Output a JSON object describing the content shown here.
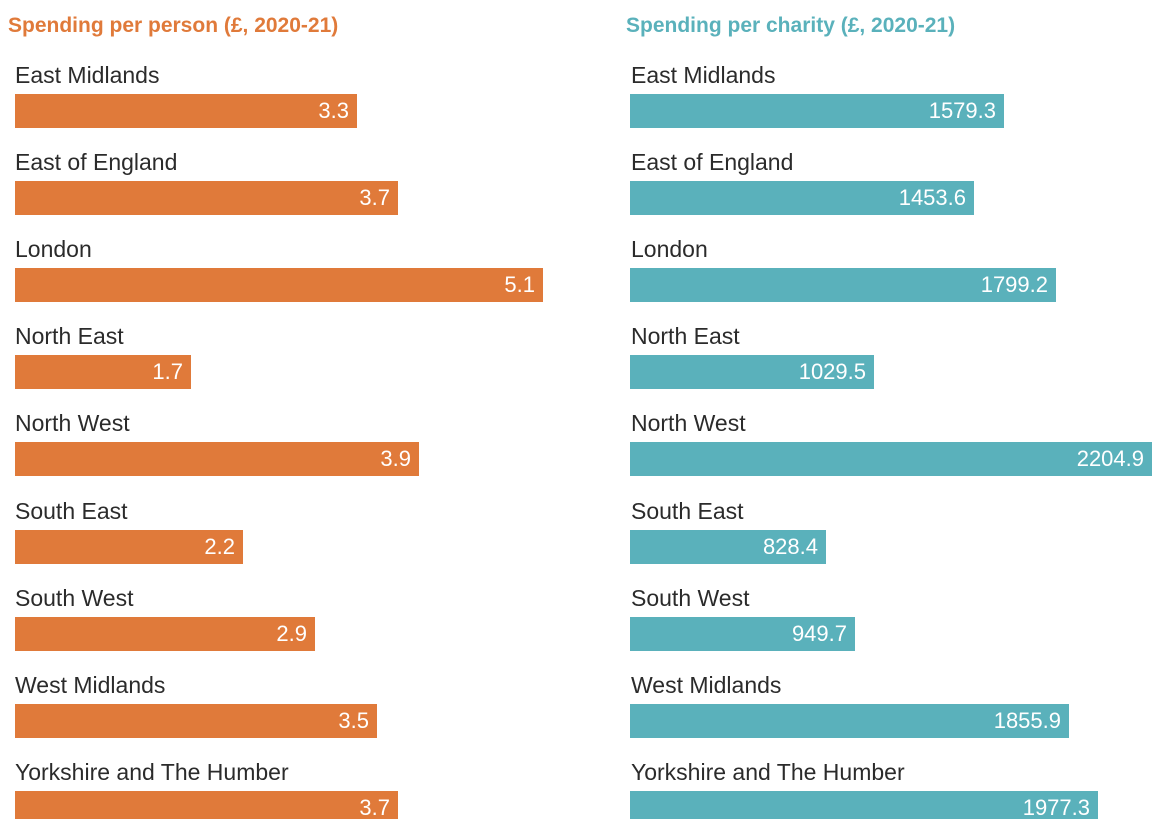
{
  "colors": {
    "left": "#e07a3a",
    "right": "#5ab1bb"
  },
  "chart_data": [
    {
      "type": "bar",
      "orientation": "horizontal",
      "title": "Spending per person (£, 2020-21)",
      "categories": [
        "East Midlands",
        "East of England",
        "London",
        "North East",
        "North West",
        "South East",
        "South West",
        "West Midlands",
        "Yorkshire and The Humber"
      ],
      "values": [
        3.3,
        3.7,
        5.1,
        1.7,
        3.9,
        2.2,
        2.9,
        3.5,
        3.7
      ],
      "value_labels": [
        "3.3",
        "3.7",
        "5.1",
        "1.7",
        "3.9",
        "2.2",
        "2.9",
        "3.5",
        "3.7"
      ],
      "xlim": [
        0,
        5.1
      ],
      "grid": false,
      "legend": "none"
    },
    {
      "type": "bar",
      "orientation": "horizontal",
      "title": "Spending per charity (£, 2020-21)",
      "categories": [
        "East Midlands",
        "East of England",
        "London",
        "North East",
        "North West",
        "South East",
        "South West",
        "West Midlands",
        "Yorkshire and The Humber"
      ],
      "values": [
        1579.3,
        1453.6,
        1799.2,
        1029.5,
        2204.9,
        828.4,
        949.7,
        1855.9,
        1977.3
      ],
      "value_labels": [
        "1579.3",
        "1453.6",
        "1799.2",
        "1029.5",
        "2204.9",
        "828.4",
        "949.7",
        "1855.9",
        "1977.3"
      ],
      "xlim": [
        0,
        2204.9
      ],
      "grid": false,
      "legend": "none"
    }
  ]
}
